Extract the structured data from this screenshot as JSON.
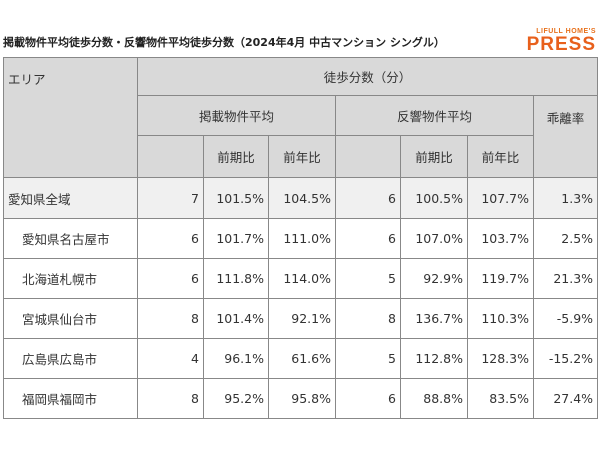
{
  "header": {
    "title": "掲載物件平均徒歩分数・反響物件平均徒歩分数（2024年4月 中古マンション シングル）",
    "logo_top": "LIFULL HOME'S",
    "logo_main": "PRESS"
  },
  "table": {
    "area_header": "エリア",
    "walk_header": "徒歩分数（分）",
    "listed_header": "掲載物件平均",
    "inquiry_header": "反響物件平均",
    "gap_header": "乖離率",
    "sub_headers": [
      "前期比",
      "前年比",
      "前期比",
      "前年比"
    ],
    "rows": [
      [
        "愛知県全域",
        "7",
        "101.5%",
        "104.5%",
        "6",
        "100.5%",
        "107.7%",
        "1.3%"
      ],
      [
        "愛知県名古屋市",
        "6",
        "101.7%",
        "111.0%",
        "6",
        "107.0%",
        "103.7%",
        "2.5%"
      ],
      [
        "北海道札幌市",
        "6",
        "111.8%",
        "114.0%",
        "5",
        "92.9%",
        "119.7%",
        "21.3%"
      ],
      [
        "宮城県仙台市",
        "8",
        "101.4%",
        "92.1%",
        "8",
        "136.7%",
        "110.3%",
        "-5.9%"
      ],
      [
        "広島県広島市",
        "4",
        "96.1%",
        "61.6%",
        "5",
        "112.8%",
        "128.3%",
        "-15.2%"
      ],
      [
        "福岡県福岡市",
        "8",
        "95.2%",
        "95.8%",
        "6",
        "88.8%",
        "83.5%",
        "27.4%"
      ]
    ]
  }
}
